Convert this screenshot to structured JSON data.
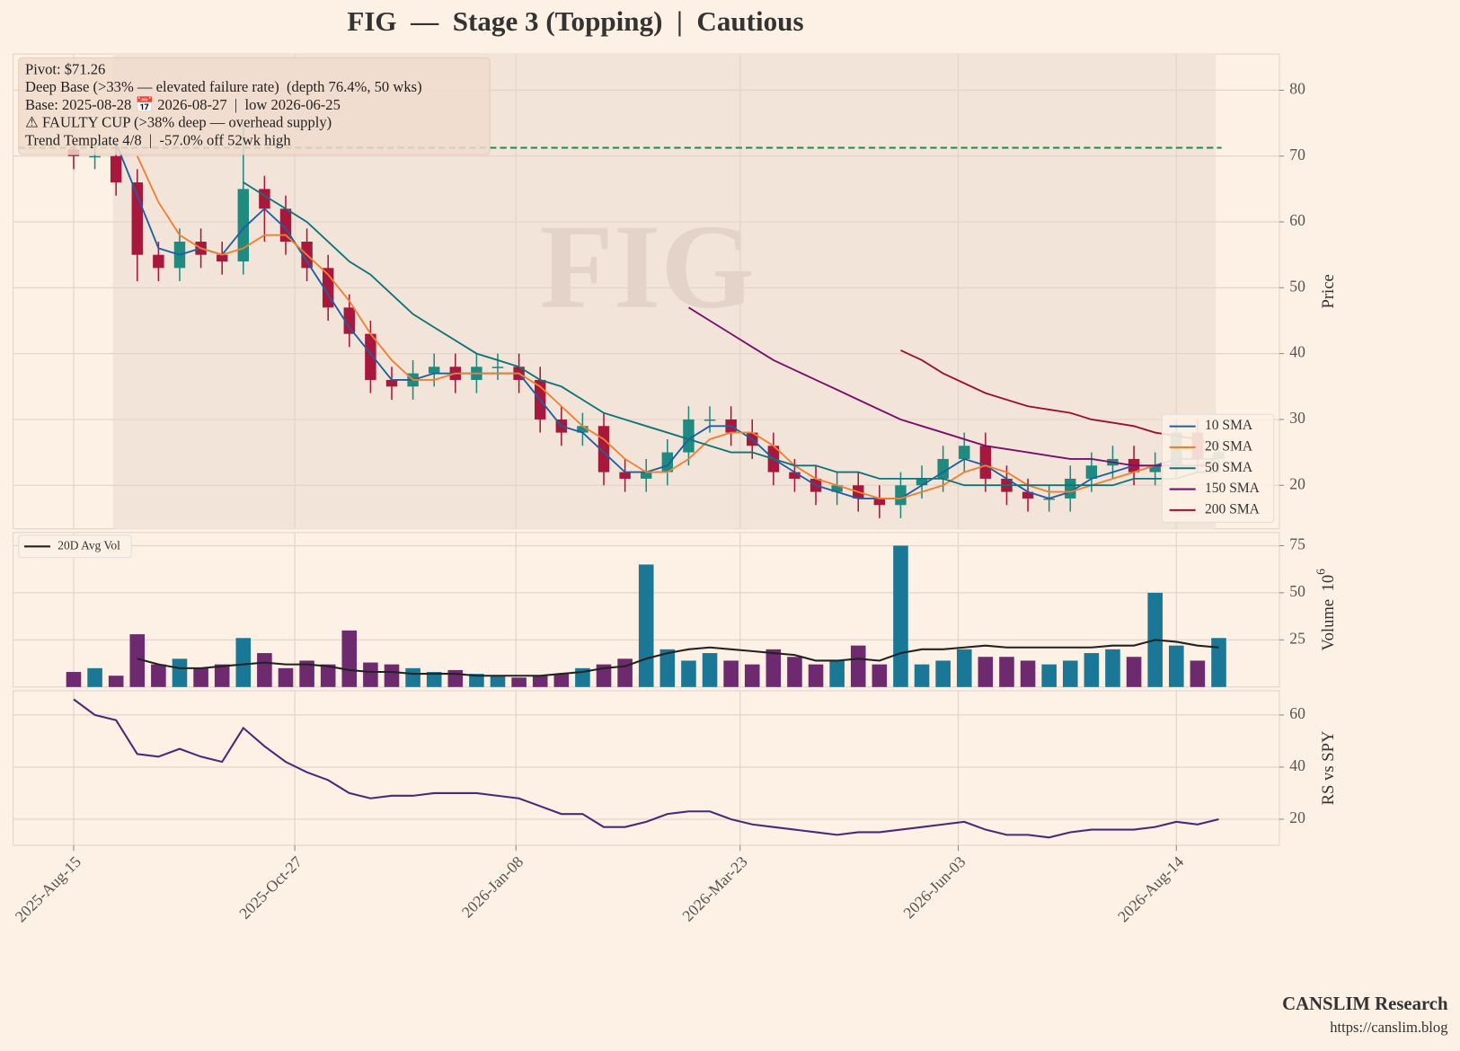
{
  "title": "FIG  —  Stage 3 (Topping)  |  Cautious",
  "footer": {
    "brand": "CANSLIM Research",
    "url": "https://canslim.blog"
  },
  "chart_data": [
    {
      "type": "candlestick",
      "watermark": "FIG",
      "annotations": [
        "Pivot: $71.26",
        "Deep Base (>33% — elevated failure rate)  (depth 76.4%, 50 wks)",
        "Base: 2025-08-28 📅 2026-08-27  |  low 2026-06-25",
        "⚠ FAULTY CUP (>38% deep — overhead supply)",
        "Trend Template 4/8  |  -57.0% off 52wk high"
      ],
      "pivot_line": 71.26,
      "pivot_color": "#1f8a4c",
      "base_region": [
        "2025-08-28",
        "2026-08-27"
      ],
      "x": [
        "2025-08-15",
        "2025-08-22",
        "2025-08-29",
        "2025-09-05",
        "2025-09-12",
        "2025-09-19",
        "2025-09-26",
        "2025-10-03",
        "2025-10-10",
        "2025-10-17",
        "2025-10-24",
        "2025-10-31",
        "2025-11-07",
        "2025-11-14",
        "2025-11-21",
        "2025-11-28",
        "2025-12-05",
        "2025-12-12",
        "2025-12-19",
        "2025-12-26",
        "2026-01-02",
        "2026-01-09",
        "2026-01-16",
        "2026-01-23",
        "2026-01-30",
        "2026-02-06",
        "2026-02-13",
        "2026-02-20",
        "2026-02-27",
        "2026-03-06",
        "2026-03-13",
        "2026-03-20",
        "2026-03-27",
        "2026-04-03",
        "2026-04-10",
        "2026-04-17",
        "2026-04-24",
        "2026-05-01",
        "2026-05-08",
        "2026-05-15",
        "2026-05-22",
        "2026-05-29",
        "2026-06-05",
        "2026-06-12",
        "2026-06-19",
        "2026-06-26",
        "2026-07-03",
        "2026-07-10",
        "2026-07-17",
        "2026-07-24",
        "2026-07-31",
        "2026-08-07",
        "2026-08-14",
        "2026-08-21",
        "2026-08-28"
      ],
      "open": [
        71,
        70,
        70,
        66,
        55,
        53,
        57,
        55,
        54,
        65,
        62,
        57,
        53,
        47,
        43,
        36,
        35,
        37,
        38,
        36,
        38,
        38,
        36,
        30,
        28,
        29,
        22,
        21,
        22,
        25,
        30,
        30,
        28,
        26,
        22,
        21,
        19,
        20,
        18,
        17,
        20,
        21,
        24,
        26,
        21,
        19,
        18,
        18,
        21,
        23,
        24,
        22,
        23,
        28,
        24
      ],
      "high": [
        73,
        72,
        72,
        68,
        57,
        59,
        59,
        57,
        75,
        67,
        64,
        59,
        55,
        49,
        45,
        38,
        39,
        40,
        40,
        40,
        40,
        40,
        38,
        32,
        31,
        31,
        24,
        24,
        27,
        32,
        32,
        32,
        30,
        28,
        24,
        23,
        22,
        22,
        20,
        22,
        23,
        26,
        28,
        28,
        23,
        21,
        20,
        23,
        25,
        26,
        26,
        25,
        30,
        30,
        27
      ],
      "low": [
        68,
        68,
        64,
        51,
        51,
        51,
        53,
        52,
        52,
        57,
        55,
        51,
        45,
        41,
        34,
        33,
        33,
        35,
        34,
        34,
        36,
        34,
        28,
        26,
        26,
        20,
        19,
        19,
        20,
        23,
        28,
        26,
        24,
        20,
        19,
        17,
        17,
        16,
        15,
        15,
        18,
        19,
        22,
        19,
        17,
        16,
        16,
        16,
        19,
        21,
        20,
        20,
        21,
        22,
        22
      ],
      "close": [
        70,
        70,
        66,
        55,
        53,
        57,
        55,
        54,
        65,
        62,
        57,
        53,
        47,
        43,
        36,
        35,
        37,
        38,
        36,
        38,
        38,
        36,
        30,
        28,
        29,
        22,
        21,
        22,
        25,
        30,
        30,
        28,
        26,
        22,
        21,
        19,
        20,
        18,
        17,
        20,
        21,
        24,
        26,
        21,
        19,
        18,
        18,
        21,
        23,
        24,
        22,
        23,
        28,
        24,
        25
      ],
      "up_color": "#1f8a80",
      "down_color": "#a8173c",
      "series": [
        {
          "name": "10 SMA",
          "color": "#1f5fa0",
          "values": [
            null,
            null,
            72,
            64,
            56,
            55,
            56,
            55,
            59,
            62,
            59,
            54,
            49,
            44,
            40,
            36,
            36,
            37,
            37,
            37,
            37,
            37,
            33,
            29,
            28,
            25,
            22,
            22,
            23,
            27,
            29,
            29,
            27,
            24,
            22,
            20,
            19,
            18,
            18,
            18,
            20,
            22,
            24,
            23,
            21,
            19,
            18,
            19,
            21,
            22,
            23,
            23,
            24,
            24,
            24
          ]
        },
        {
          "name": "20 SMA",
          "color": "#f08030",
          "values": [
            null,
            null,
            null,
            70,
            63,
            58,
            56,
            55,
            56,
            58,
            58,
            55,
            52,
            48,
            43,
            39,
            36,
            36,
            37,
            37,
            37,
            37,
            35,
            32,
            29,
            27,
            24,
            22,
            22,
            24,
            27,
            28,
            28,
            26,
            23,
            21,
            20,
            19,
            18,
            18,
            19,
            20,
            22,
            23,
            22,
            20,
            19,
            19,
            20,
            21,
            22,
            23,
            23,
            23,
            24
          ]
        },
        {
          "name": "50 SMA",
          "color": "#0e7478",
          "values": [
            null,
            null,
            null,
            null,
            null,
            null,
            null,
            null,
            66,
            64,
            62,
            60,
            57,
            54,
            52,
            49,
            46,
            44,
            42,
            40,
            39,
            38,
            36,
            35,
            33,
            31,
            30,
            29,
            28,
            27,
            26,
            25,
            25,
            24,
            23,
            23,
            22,
            22,
            21,
            21,
            21,
            21,
            20,
            20,
            20,
            20,
            20,
            20,
            20,
            20,
            21,
            21,
            21,
            22,
            22
          ]
        },
        {
          "name": "150 SMA",
          "color": "#7a0e6e",
          "values": [
            null,
            null,
            null,
            null,
            null,
            null,
            null,
            null,
            null,
            null,
            null,
            null,
            null,
            null,
            null,
            null,
            null,
            null,
            null,
            null,
            null,
            null,
            null,
            null,
            null,
            null,
            null,
            null,
            null,
            47,
            45,
            43,
            41,
            39,
            37.5,
            36,
            34.5,
            33,
            31.5,
            30,
            29,
            28,
            27,
            26,
            25.5,
            25,
            24.5,
            24,
            24,
            23.5,
            23,
            23,
            23,
            23,
            23
          ]
        },
        {
          "name": "200 SMA",
          "color": "#9a1035",
          "values": [
            null,
            null,
            null,
            null,
            null,
            null,
            null,
            null,
            null,
            null,
            null,
            null,
            null,
            null,
            null,
            null,
            null,
            null,
            null,
            null,
            null,
            null,
            null,
            null,
            null,
            null,
            null,
            null,
            null,
            null,
            null,
            null,
            null,
            null,
            null,
            null,
            null,
            null,
            null,
            40.5,
            39,
            37,
            35.5,
            34,
            33,
            32,
            31.5,
            31,
            30,
            29.5,
            29,
            28,
            27.5,
            27,
            26
          ]
        }
      ],
      "ylim": [
        13.4,
        85.5
      ],
      "yticks": [
        20,
        30,
        40,
        50,
        60,
        70,
        80
      ],
      "y_label": "Price",
      "legend": "lower right",
      "grid": true
    },
    {
      "type": "bar",
      "values": [
        8,
        10,
        6,
        28,
        12,
        15,
        10,
        12,
        26,
        18,
        10,
        14,
        12,
        30,
        13,
        12,
        10,
        8,
        9,
        7,
        6,
        5,
        6,
        7,
        10,
        12,
        15,
        65,
        20,
        14,
        18,
        14,
        12,
        20,
        16,
        12,
        14,
        22,
        12,
        75,
        12,
        14,
        20,
        16,
        16,
        14,
        12,
        14,
        18,
        20,
        16,
        50,
        22,
        14,
        26
      ],
      "up_color": "#1a7896",
      "down_color": "#6e2a6e",
      "series": [
        {
          "name": "20D Avg Vol",
          "color": "#222222",
          "values": [
            null,
            null,
            null,
            15,
            12,
            10,
            10,
            11,
            12,
            13,
            12,
            12,
            11,
            9,
            8,
            8,
            7,
            7,
            7,
            6,
            6,
            6,
            6,
            7,
            8,
            10,
            11,
            15,
            18,
            20,
            21,
            20,
            19,
            18,
            17,
            14,
            14,
            15,
            14,
            18,
            20,
            20,
            21,
            22,
            21,
            21,
            21,
            21,
            21,
            22,
            22,
            25,
            24,
            22,
            21
          ]
        }
      ],
      "ylim": [
        0,
        82
      ],
      "yticks": [
        25,
        50,
        75
      ],
      "y_label": "Volume",
      "y_unit_base": "10",
      "y_unit_exponent": "6",
      "legend": "upper left",
      "grid": true
    },
    {
      "type": "line",
      "values": [
        66,
        60,
        58,
        45,
        44,
        47,
        44,
        42,
        55,
        48,
        42,
        38,
        35,
        30,
        28,
        29,
        29,
        30,
        30,
        30,
        29,
        28,
        25,
        22,
        22,
        17,
        17,
        19,
        22,
        23,
        23,
        20,
        18,
        17,
        16,
        15,
        14,
        15,
        15,
        16,
        17,
        18,
        19,
        16,
        14,
        14,
        13,
        15,
        16,
        16,
        16,
        17,
        19,
        18,
        20
      ],
      "color": "#4a2a78",
      "ylim": [
        10,
        69.3
      ],
      "yticks": [
        20,
        40,
        60
      ],
      "y_label": "RS vs SPY",
      "grid": true,
      "xlim": [
        "2025-07-26",
        "2026-09-17"
      ],
      "xticks": [
        {
          "value": "2025-08-15",
          "label": "2025-Aug-15"
        },
        {
          "value": "2025-10-27",
          "label": "2025-Oct-27"
        },
        {
          "value": "2026-01-08",
          "label": "2026-Jan-08"
        },
        {
          "value": "2026-03-23",
          "label": "2026-Mar-23"
        },
        {
          "value": "2026-06-03",
          "label": "2026-Jun-03"
        },
        {
          "value": "2026-08-14",
          "label": "2026-Aug-14"
        }
      ]
    }
  ]
}
